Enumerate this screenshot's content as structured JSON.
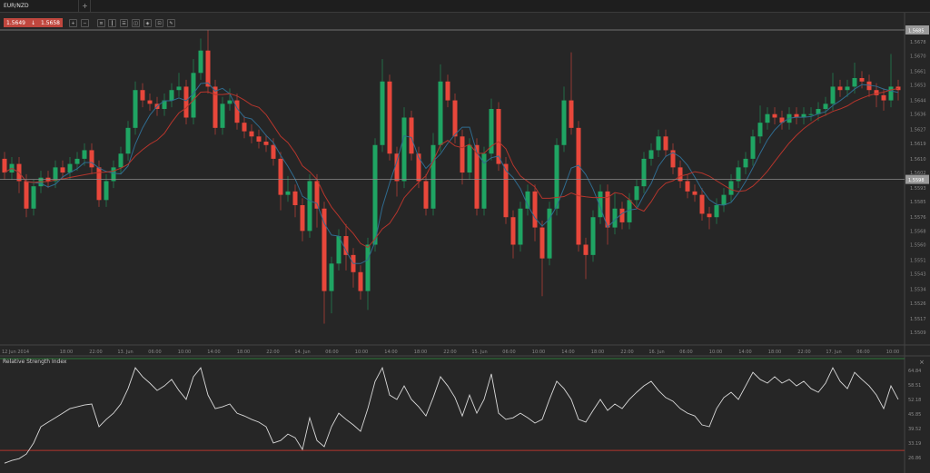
{
  "tabs": [
    {
      "label": "EUR/NZD"
    }
  ],
  "add_tab_label": "+",
  "quote": {
    "bid": "1.5649",
    "arrow": "↓",
    "ask": "1.5658",
    "color": "#c0473e"
  },
  "toolbar": {
    "icons": [
      "zoom-in-icon",
      "zoom-out-icon",
      "timeframe-icon",
      "chart-type-icon",
      "indicators-icon",
      "drawing-icon",
      "template-icon",
      "screenshot-icon",
      "settings-icon"
    ]
  },
  "price_axis": {
    "labels": [
      "1.5678",
      "1.5670",
      "1.5661",
      "1.5653",
      "1.5644",
      "1.5636",
      "1.5627",
      "1.5619",
      "1.5610",
      "1.5602",
      "1.5593",
      "1.5585",
      "1.5576",
      "1.5568",
      "1.5560",
      "1.5551",
      "1.5543",
      "1.5534",
      "1.5526",
      "1.5517",
      "1.5509"
    ],
    "ask_line": "1.5685",
    "bid_line": "1.5598"
  },
  "time_axis": {
    "labels": [
      "12 Jun 2014",
      "18:00",
      "22:00",
      "13. Jun",
      "06:00",
      "10:00",
      "14:00",
      "18:00",
      "22:00",
      "14. Jun",
      "06:00",
      "10:00",
      "14:00",
      "18:00",
      "22:00",
      "15. Jun",
      "06:00",
      "10:00",
      "14:00",
      "18:00",
      "22:00",
      "16. Jun",
      "06:00",
      "10:00",
      "14:00",
      "18:00",
      "22:00",
      "17. Jun",
      "06:00",
      "10:00"
    ]
  },
  "rsi_panel": {
    "title": "Relative Strength Index",
    "close_label": "×",
    "labels": [
      "64.84",
      "58.51",
      "52.18",
      "45.85",
      "39.52",
      "33.19",
      "26.86"
    ],
    "upper_level": 70,
    "lower_level": 30
  },
  "colors": {
    "background": "#262626",
    "bull": "#1fa463",
    "bear": "#e8473b",
    "ma_fast": "#2f6b8f",
    "ma_slow": "#b5352c",
    "rsi_line": "#d9d9d9",
    "upper_level": "#2f7a3a",
    "lower_level": "#b5352c"
  },
  "chart_data": {
    "type": "candlestick",
    "symbol": "EUR/NZD",
    "ylim": [
      1.5503,
      1.569
    ],
    "close": [
      1.5602,
      1.5607,
      1.5597,
      1.5581,
      1.5594,
      1.5599,
      1.5597,
      1.5605,
      1.5602,
      1.5607,
      1.561,
      1.5615,
      1.5605,
      1.5586,
      1.5597,
      1.5605,
      1.5613,
      1.5628,
      1.565,
      1.5644,
      1.5642,
      1.5639,
      1.5644,
      1.565,
      1.5652,
      1.5634,
      1.566,
      1.5673,
      1.5652,
      1.5628,
      1.5642,
      1.5644,
      1.5631,
      1.5626,
      1.5623,
      1.562,
      1.5618,
      1.561,
      1.5589,
      1.5591,
      1.5583,
      1.5568,
      1.5597,
      1.5581,
      1.5533,
      1.5549,
      1.5565,
      1.5554,
      1.5544,
      1.5533,
      1.556,
      1.5618,
      1.5655,
      1.5613,
      1.5597,
      1.5634,
      1.5613,
      1.5597,
      1.5581,
      1.5618,
      1.5655,
      1.5644,
      1.5623,
      1.5602,
      1.5618,
      1.5581,
      1.5613,
      1.5639,
      1.5607,
      1.5576,
      1.556,
      1.5581,
      1.5591,
      1.557,
      1.5552,
      1.5581,
      1.5618,
      1.5644,
      1.5628,
      1.556,
      1.5554,
      1.5576,
      1.5591,
      1.557,
      1.5581,
      1.5573,
      1.5586,
      1.5594,
      1.561,
      1.5615,
      1.5623,
      1.5615,
      1.5605,
      1.5597,
      1.5591,
      1.5589,
      1.5578,
      1.5576,
      1.5583,
      1.5589,
      1.5597,
      1.5605,
      1.561,
      1.5623,
      1.5631,
      1.5636,
      1.5634,
      1.5631,
      1.5636,
      1.5634,
      1.5636,
      1.5636,
      1.5639,
      1.5642,
      1.5652,
      1.565,
      1.5652,
      1.5657,
      1.5655,
      1.565,
      1.5647,
      1.5644,
      1.5652,
      1.565
    ],
    "first_open": 1.561,
    "high": [
      1.5614,
      1.5611,
      1.5611,
      1.5601,
      1.5598,
      1.5603,
      1.5603,
      1.5609,
      1.5609,
      1.5611,
      1.5614,
      1.5619,
      1.5619,
      1.5609,
      1.5601,
      1.5609,
      1.5617,
      1.5632,
      1.5655,
      1.5654,
      1.5648,
      1.5646,
      1.5648,
      1.5654,
      1.566,
      1.5656,
      1.5668,
      1.568,
      1.5685,
      1.5656,
      1.5646,
      1.5651,
      1.5648,
      1.5635,
      1.563,
      1.5627,
      1.5624,
      1.5622,
      1.5614,
      1.56,
      1.5595,
      1.5587,
      1.5601,
      1.5601,
      1.5585,
      1.5553,
      1.5569,
      1.5572,
      1.5558,
      1.5548,
      1.5564,
      1.5622,
      1.5668,
      1.5659,
      1.5617,
      1.564,
      1.5638,
      1.5617,
      1.5601,
      1.5625,
      1.5665,
      1.5659,
      1.5648,
      1.5627,
      1.5622,
      1.5622,
      1.5617,
      1.5645,
      1.5643,
      1.5611,
      1.558,
      1.5585,
      1.5595,
      1.5595,
      1.5574,
      1.5585,
      1.5622,
      1.5652,
      1.5672,
      1.5632,
      1.5564,
      1.558,
      1.5595,
      1.5595,
      1.559,
      1.5585,
      1.559,
      1.5598,
      1.5614,
      1.5619,
      1.5627,
      1.5627,
      1.5619,
      1.5609,
      1.5601,
      1.5595,
      1.5593,
      1.5582,
      1.5587,
      1.5593,
      1.5601,
      1.5609,
      1.5614,
      1.5627,
      1.5641,
      1.564,
      1.564,
      1.5638,
      1.564,
      1.564,
      1.564,
      1.564,
      1.5643,
      1.5646,
      1.566,
      1.5656,
      1.5656,
      1.5666,
      1.5661,
      1.5659,
      1.5654,
      1.5651,
      1.5671,
      1.5656
    ],
    "low": [
      1.5598,
      1.5598,
      1.559,
      1.5576,
      1.5577,
      1.559,
      1.5593,
      1.5593,
      1.5598,
      1.5598,
      1.5603,
      1.5606,
      1.5601,
      1.5582,
      1.5582,
      1.5593,
      1.5601,
      1.5609,
      1.5624,
      1.564,
      1.5638,
      1.5635,
      1.5635,
      1.564,
      1.5646,
      1.563,
      1.563,
      1.5656,
      1.5648,
      1.5624,
      1.5624,
      1.5638,
      1.5627,
      1.5622,
      1.5619,
      1.5616,
      1.5614,
      1.5606,
      1.558,
      1.5585,
      1.5576,
      1.5562,
      1.5564,
      1.557,
      1.5514,
      1.552,
      1.5545,
      1.5545,
      1.5535,
      1.5528,
      1.5522,
      1.5556,
      1.5614,
      1.5609,
      1.5588,
      1.5593,
      1.5609,
      1.5593,
      1.5577,
      1.5577,
      1.5614,
      1.564,
      1.5619,
      1.5595,
      1.5598,
      1.5577,
      1.5577,
      1.5609,
      1.5603,
      1.5572,
      1.5552,
      1.5556,
      1.5577,
      1.5562,
      1.553,
      1.5548,
      1.5577,
      1.5614,
      1.5624,
      1.5556,
      1.554,
      1.555,
      1.5572,
      1.556,
      1.5566,
      1.5569,
      1.5569,
      1.5582,
      1.559,
      1.5606,
      1.5611,
      1.5611,
      1.5601,
      1.5593,
      1.5587,
      1.5585,
      1.5574,
      1.5569,
      1.5572,
      1.5579,
      1.5585,
      1.5593,
      1.5601,
      1.5606,
      1.5619,
      1.5627,
      1.563,
      1.5627,
      1.5627,
      1.563,
      1.563,
      1.5632,
      1.5632,
      1.5635,
      1.5638,
      1.5646,
      1.5646,
      1.5648,
      1.5651,
      1.5646,
      1.564,
      1.5638,
      1.564,
      1.5644
    ],
    "rsi": [
      24.4,
      25.6,
      26.4,
      28.4,
      33.2,
      40.3,
      42.3,
      44.2,
      46.2,
      48.2,
      49.0,
      49.8,
      50.2,
      40.3,
      43.5,
      46.2,
      50.2,
      56.9,
      66.0,
      62.1,
      59.3,
      56.1,
      58.1,
      60.9,
      56.1,
      52.2,
      62.1,
      66.0,
      54.1,
      48.2,
      49.0,
      50.2,
      46.2,
      45.0,
      43.5,
      42.3,
      40.3,
      33.2,
      34.3,
      37.1,
      35.5,
      30.4,
      44.2,
      34.3,
      31.6,
      40.3,
      46.2,
      43.5,
      41.1,
      38.3,
      48.2,
      60.1,
      66.0,
      54.1,
      52.2,
      58.1,
      52.2,
      49.0,
      45.0,
      53.0,
      62.1,
      58.1,
      53.0,
      45.0,
      54.1,
      46.2,
      52.2,
      63.3,
      46.2,
      43.5,
      44.2,
      46.2,
      44.2,
      41.9,
      43.5,
      52.2,
      60.1,
      56.9,
      52.2,
      43.5,
      42.3,
      47.4,
      52.2,
      47.4,
      50.2,
      48.2,
      52.2,
      55.3,
      58.1,
      60.1,
      56.1,
      53.0,
      51.4,
      48.2,
      46.2,
      45.0,
      41.1,
      40.3,
      48.2,
      53.0,
      55.3,
      52.2,
      58.1,
      64.0,
      60.9,
      59.3,
      62.1,
      59.3,
      60.9,
      58.1,
      60.1,
      56.9,
      55.3,
      59.3,
      66.0,
      60.1,
      56.9,
      64.0,
      60.9,
      58.1,
      54.1,
      48.2,
      58.1,
      52.2
    ],
    "rsi_ylim": [
      22,
      72
    ]
  }
}
